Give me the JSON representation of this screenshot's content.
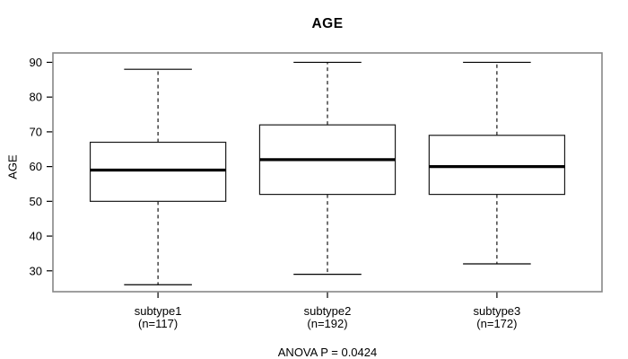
{
  "figure": {
    "title": "AGE",
    "y_axis_title": "AGE",
    "footnote": "ANOVA P = 0.0424"
  },
  "colors": {
    "background": "#ffffff",
    "plot_border": "#878787",
    "box_stroke": "#1a1a1a",
    "median": "#000000",
    "whisker": "#000000",
    "tick": "#000000",
    "text": "#000000"
  },
  "chart_data": {
    "type": "boxplot",
    "title": "AGE",
    "xlabel": "",
    "ylabel": "AGE",
    "ylim": [
      24,
      92.7
    ],
    "yticks": [
      30,
      40,
      50,
      60,
      70,
      80,
      90
    ],
    "grid": false,
    "legend": "none",
    "categories": [
      "subtype1",
      "subtype2",
      "subtype3"
    ],
    "category_sublabels": [
      "(n=117)",
      "(n=192)",
      "(n=172)"
    ],
    "series": [
      {
        "name": "subtype1",
        "n": 117,
        "whisker_low": 26,
        "q1": 50,
        "median": 59,
        "q3": 67,
        "whisker_high": 88
      },
      {
        "name": "subtype2",
        "n": 192,
        "whisker_low": 29,
        "q1": 52,
        "median": 62,
        "q3": 72,
        "whisker_high": 90
      },
      {
        "name": "subtype3",
        "n": 172,
        "whisker_low": 32,
        "q1": 52,
        "median": 60,
        "q3": 69,
        "whisker_high": 90
      }
    ],
    "annotation": "ANOVA P = 0.0424"
  }
}
